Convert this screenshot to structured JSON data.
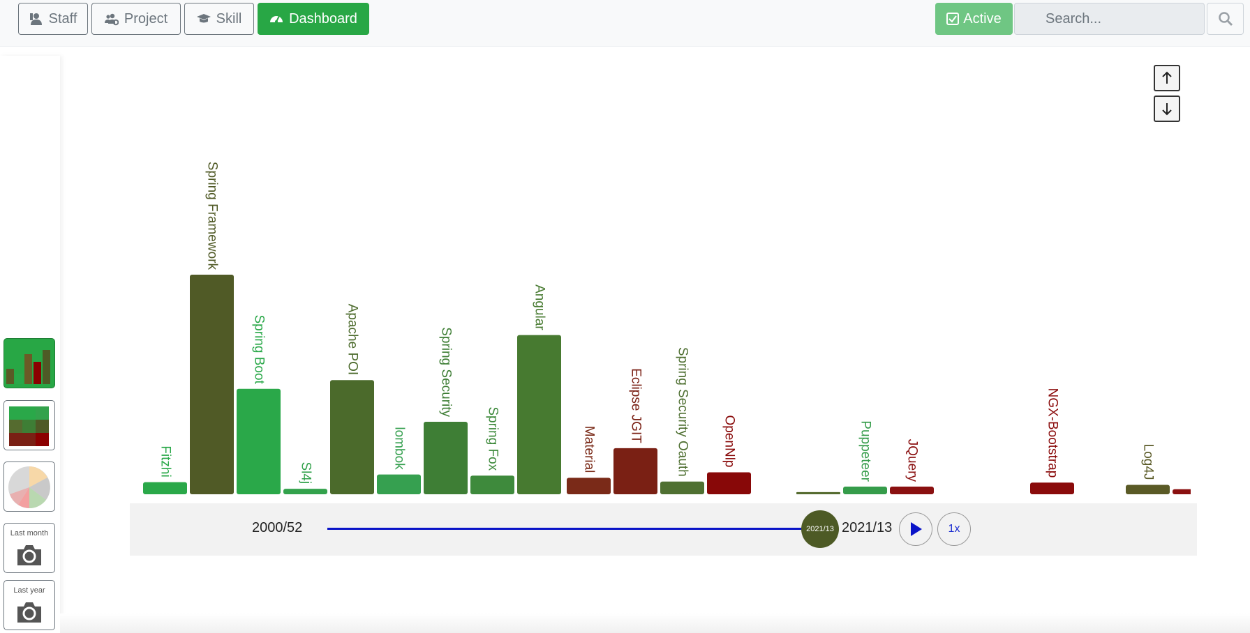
{
  "nav": {
    "tabs": [
      {
        "label": "Staff",
        "icon": "staff-icon"
      },
      {
        "label": "Project",
        "icon": "users-cog-icon"
      },
      {
        "label": "Skill",
        "icon": "graduation-cap-icon"
      },
      {
        "label": "Dashboard",
        "icon": "dashboard-gauge-icon",
        "active": true
      }
    ],
    "status_label": "Active",
    "search_placeholder": "Search..."
  },
  "sidebar": {
    "views": [
      {
        "name": "bar-chart-view",
        "active": true
      },
      {
        "name": "heatmap-view"
      },
      {
        "name": "pie-chart-view"
      }
    ],
    "snapshots": [
      {
        "label": "Last month"
      },
      {
        "label": "Last year"
      }
    ]
  },
  "colors": {
    "brand_green": "#28a745",
    "accent_blue": "#0a14c8",
    "bright_green": "#28a745",
    "mid_green": "#3c7a34",
    "olive": "#4e5a26",
    "dark_red": "#7a1f12",
    "red": "#8b0000"
  },
  "chart_data": {
    "type": "bar",
    "title": "",
    "xlabel": "",
    "ylabel": "",
    "ylim": [
      0,
      100
    ],
    "categories": [
      "Fitzhi",
      "Spring Framework",
      "Spring Boot",
      "Sl4j",
      "Apache POI",
      "lombok",
      "Spring Security",
      "Spring Fox",
      "Angular",
      "Material",
      "Eclipse JGIT",
      "Spring Security Oauth",
      "OpenNlp",
      "",
      "Puppeteer",
      "JQuery",
      "NGX-Bootstrap",
      "Log4J",
      ""
    ],
    "values": [
      5.5,
      100,
      48,
      2.5,
      52,
      9,
      33,
      8.5,
      72.5,
      7.5,
      21,
      5.8,
      10,
      1,
      3.5,
      3.5,
      5.3,
      4.3,
      2.3
    ],
    "colors": [
      "#2aa849",
      "#505a26",
      "#2aa849",
      "#33a24c",
      "#4b6a2b",
      "#36a050",
      "#3e7e35",
      "#3e8a3c",
      "#477a30",
      "#7a2a18",
      "#7a2014",
      "#4f7032",
      "#880808",
      "#556b2f",
      "#359c4a",
      "#8a1010",
      "#8a0b0b",
      "#5a5a26",
      "#8a1010"
    ]
  },
  "timeline": {
    "start_label": "2000/52",
    "current_label": "2021/13",
    "end_label": "2021/13",
    "speed_label": "1x",
    "progress": 1.0
  }
}
